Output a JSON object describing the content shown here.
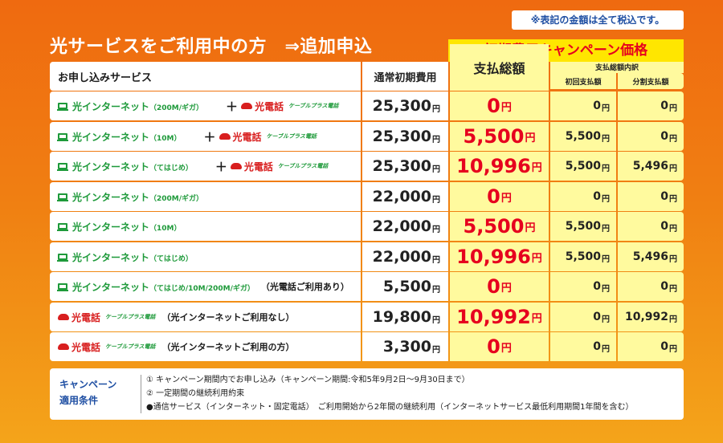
{
  "tax_note": "※表記の金額は全て税込です。",
  "heading": "光サービスをご利用中の方　⇒追加申込",
  "campaign_header": "初期費用キャンペーン価格",
  "table_headers": {
    "service": "お申し込みサービス",
    "regular": "通常初期費用",
    "total": "支払総額",
    "breakdown": "支払総額内訳",
    "initial": "初回支払額",
    "installment": "分割支払額"
  },
  "labels": {
    "hikari_internet": "光インターネット",
    "hikari_denwa": "光電話",
    "cable_plus": "ケーブルプラス電話",
    "plus_sign": "＋",
    "yen": "円"
  },
  "rows": [
    {
      "internet_plan": "（200M/ギガ）",
      "has_phone": true,
      "note": "",
      "regular": "25,300",
      "total": "0",
      "initial": "0",
      "installment": "0"
    },
    {
      "internet_plan": "（10M）",
      "has_phone": true,
      "note": "",
      "regular": "25,300",
      "total": "5,500",
      "initial": "5,500",
      "installment": "0"
    },
    {
      "internet_plan": "（てはじめ）",
      "has_phone": true,
      "note": "",
      "regular": "25,300",
      "total": "10,996",
      "initial": "5,500",
      "installment": "5,496"
    },
    {
      "internet_plan": "（200M/ギガ）",
      "has_phone": false,
      "note": "",
      "regular": "22,000",
      "total": "0",
      "initial": "0",
      "installment": "0"
    },
    {
      "internet_plan": "（10M）",
      "has_phone": false,
      "note": "",
      "regular": "22,000",
      "total": "5,500",
      "initial": "5,500",
      "installment": "0"
    },
    {
      "internet_plan": "（てはじめ）",
      "has_phone": false,
      "note": "",
      "regular": "22,000",
      "total": "10,996",
      "initial": "5,500",
      "installment": "5,496"
    },
    {
      "internet_plan": "（てはじめ/10M/200M/ギガ）",
      "has_phone": false,
      "note": "（光電話ご利用あり）",
      "regular": "5,500",
      "total": "0",
      "initial": "0",
      "installment": "0"
    },
    {
      "internet_plan": null,
      "has_phone": true,
      "note": "（光インターネットご利用なし）",
      "regular": "19,800",
      "total": "10,992",
      "initial": "0",
      "installment": "10,992"
    },
    {
      "internet_plan": null,
      "has_phone": true,
      "note": "（光インターネットご利用の方）",
      "regular": "3,300",
      "total": "0",
      "initial": "0",
      "installment": "0"
    }
  ],
  "conditions": {
    "label_line1": "キャンペーン",
    "label_line2": "適用条件",
    "lines": [
      "① キャンペーン期間内でお申し込み（キャンペーン期間:令和5年9月2日～9月30日まで）",
      "② 一定期間の継続利用約束",
      "●通信サービス（インターネット・固定電話）　ご利用開始から2年間の継続利用（インターネットサービス最低利用期間1年間を含む）"
    ]
  },
  "colors": {
    "accent_red": "#e6001e",
    "campaign_yellow": "#ffe600",
    "net_green": "#1e9a3a",
    "note_blue": "#1f4fa3"
  }
}
